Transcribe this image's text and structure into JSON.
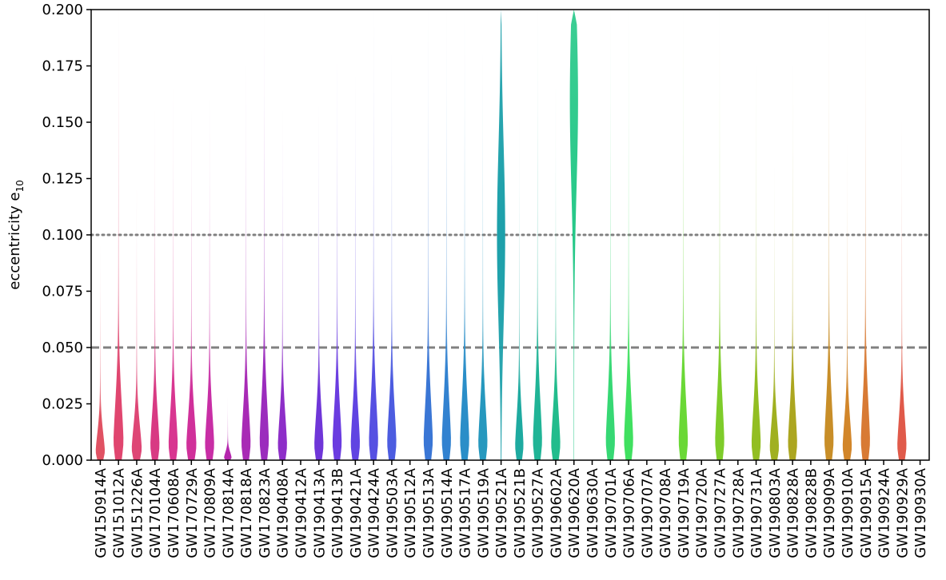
{
  "chart_data": {
    "type": "violin",
    "ylabel": "eccentricity e",
    "ylabel_subscript": "10",
    "ylim": [
      0,
      0.2
    ],
    "yticks": [
      "0.000",
      "0.025",
      "0.050",
      "0.075",
      "0.100",
      "0.125",
      "0.150",
      "0.175",
      "0.200"
    ],
    "ytick_values": [
      0,
      0.025,
      0.05,
      0.075,
      0.1,
      0.125,
      0.15,
      0.175,
      0.2
    ],
    "reference_lines": [
      {
        "y": 0.05,
        "style": "dashed",
        "color": "#808080"
      },
      {
        "y": 0.1,
        "style": "dotted",
        "color": "#808080"
      }
    ],
    "events": [
      {
        "name": "GW150914A",
        "color": "#e05263",
        "upper": 0.095,
        "width": 0.55
      },
      {
        "name": "GW151012A",
        "color": "#e0466f",
        "upper": 0.2,
        "width": 0.6
      },
      {
        "name": "GW151226A",
        "color": "#de4675",
        "upper": 0.12,
        "width": 0.6
      },
      {
        "name": "GW170104A",
        "color": "#d83a83",
        "upper": 0.155,
        "width": 0.55
      },
      {
        "name": "GW170608A",
        "color": "#d83690",
        "upper": 0.165,
        "width": 0.55
      },
      {
        "name": "GW170729A",
        "color": "#d0309a",
        "upper": 0.155,
        "width": 0.6
      },
      {
        "name": "GW170809A",
        "color": "#c82ea5",
        "upper": 0.16,
        "width": 0.55
      },
      {
        "name": "GW170814A",
        "color": "#b526ad",
        "upper": 0.028,
        "width": 0.45
      },
      {
        "name": "GW170818A",
        "color": "#a82ab5",
        "upper": 0.175,
        "width": 0.55
      },
      {
        "name": "GW170823A",
        "color": "#9b2cbd",
        "upper": 0.2,
        "width": 0.55
      },
      {
        "name": "GW190408A",
        "color": "#8d2ec8",
        "upper": 0.155,
        "width": 0.55
      },
      {
        "name": "GW190412A",
        "color": "#8a2fd0",
        "upper": 0,
        "width": 0
      },
      {
        "name": "GW190413A",
        "color": "#6f36d8",
        "upper": 0.157,
        "width": 0.55
      },
      {
        "name": "GW190413B",
        "color": "#6a3ce0",
        "upper": 0.18,
        "width": 0.55
      },
      {
        "name": "GW190421A",
        "color": "#6044e2",
        "upper": 0.17,
        "width": 0.55
      },
      {
        "name": "GW190424A",
        "color": "#5650e2",
        "upper": 0.2,
        "width": 0.55
      },
      {
        "name": "GW190503A",
        "color": "#4c5ce0",
        "upper": 0.18,
        "width": 0.55
      },
      {
        "name": "GW190512A",
        "color": "#4666dd",
        "upper": 0,
        "width": 0
      },
      {
        "name": "GW190513A",
        "color": "#3a76d5",
        "upper": 0.2,
        "width": 0.55
      },
      {
        "name": "GW190514A",
        "color": "#3282d0",
        "upper": 0.2,
        "width": 0.55
      },
      {
        "name": "GW190517A",
        "color": "#2a8ec8",
        "upper": 0.2,
        "width": 0.55
      },
      {
        "name": "GW190519A",
        "color": "#2698be",
        "upper": 0.18,
        "width": 0.55
      },
      {
        "name": "GW190521A",
        "color": "#1ca0aa",
        "upper": 0.2,
        "width": 0.45,
        "mode": 0.1
      },
      {
        "name": "GW190521B",
        "color": "#1eaaa0",
        "upper": 0.15,
        "width": 0.5
      },
      {
        "name": "GW190527A",
        "color": "#20b496",
        "upper": 0.2,
        "width": 0.55
      },
      {
        "name": "GW190602A",
        "color": "#22bc8c",
        "upper": 0.165,
        "width": 0.55
      },
      {
        "name": "GW190620A",
        "color": "#26c888",
        "upper": 0.2,
        "width": 0.45,
        "mode": 0.16
      },
      {
        "name": "GW190630A",
        "color": "#2ad07e",
        "upper": 0,
        "width": 0
      },
      {
        "name": "GW190701A",
        "color": "#36d874",
        "upper": 0.2,
        "width": 0.55
      },
      {
        "name": "GW190706A",
        "color": "#40e060",
        "upper": 0.2,
        "width": 0.55
      },
      {
        "name": "GW190707A",
        "color": "#4ae050",
        "upper": 0,
        "width": 0
      },
      {
        "name": "GW190708A",
        "color": "#56e042",
        "upper": 0,
        "width": 0
      },
      {
        "name": "GW190719A",
        "color": "#6ad836",
        "upper": 0.2,
        "width": 0.55
      },
      {
        "name": "GW190720A",
        "color": "#74d22e",
        "upper": 0,
        "width": 0
      },
      {
        "name": "GW190727A",
        "color": "#7ecc2a",
        "upper": 0.2,
        "width": 0.55
      },
      {
        "name": "GW190728A",
        "color": "#88c426",
        "upper": 0,
        "width": 0
      },
      {
        "name": "GW190731A",
        "color": "#92be22",
        "upper": 0.175,
        "width": 0.55
      },
      {
        "name": "GW190803A",
        "color": "#a0b020",
        "upper": 0.13,
        "width": 0.55
      },
      {
        "name": "GW190828A",
        "color": "#aca620",
        "upper": 0.175,
        "width": 0.55
      },
      {
        "name": "GW190828B",
        "color": "#b89c22",
        "upper": 0,
        "width": 0
      },
      {
        "name": "GW190909A",
        "color": "#c88e28",
        "upper": 0.2,
        "width": 0.55
      },
      {
        "name": "GW190910A",
        "color": "#d2862a",
        "upper": 0.14,
        "width": 0.55
      },
      {
        "name": "GW190915A",
        "color": "#d87a34",
        "upper": 0.2,
        "width": 0.55
      },
      {
        "name": "GW190924A",
        "color": "#dc703c",
        "upper": 0,
        "width": 0
      },
      {
        "name": "GW190929A",
        "color": "#e05a4a",
        "upper": 0.15,
        "width": 0.55
      },
      {
        "name": "GW190930A",
        "color": "#e2524e",
        "upper": 0,
        "width": 0
      }
    ]
  }
}
